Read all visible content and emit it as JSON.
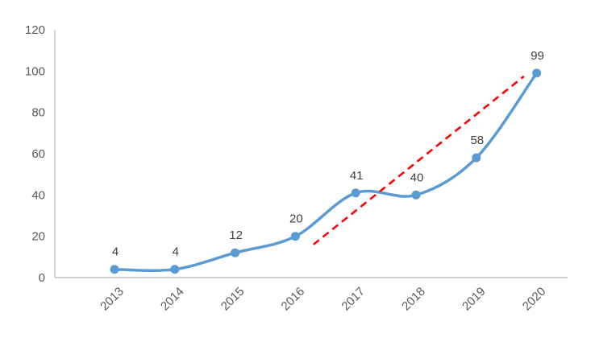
{
  "chart_data": {
    "type": "line",
    "title": "",
    "categories": [
      "2013",
      "2014",
      "2015",
      "2016",
      "2017",
      "2018",
      "2019",
      "2020"
    ],
    "series": [
      {
        "name": "",
        "values": [
          4,
          4,
          12,
          20,
          41,
          40,
          58,
          99
        ],
        "color": "#5B9BD5",
        "smooth": true,
        "markers": true
      }
    ],
    "data_labels": [
      "4",
      "4",
      "12",
      "20",
      "41",
      "40",
      "58",
      "99"
    ],
    "y_axis": {
      "min": 0,
      "max": 120,
      "step": 20,
      "tick_labels": [
        "0",
        "20",
        "40",
        "60",
        "80",
        "100",
        "120"
      ]
    },
    "x_axis": {
      "base_year": 2013,
      "tick_rotation_deg": -45
    },
    "trend_line": {
      "color": "#FF0000",
      "style": "dashed",
      "start": {
        "year": 2016.3,
        "value": 16
      },
      "end": {
        "year": 2019.79,
        "value": 97.5
      }
    },
    "grid": false,
    "legend": "none",
    "colors": {
      "axis": "#BFBFBF",
      "tick_label": "#595959",
      "data_label": "#404040"
    }
  }
}
